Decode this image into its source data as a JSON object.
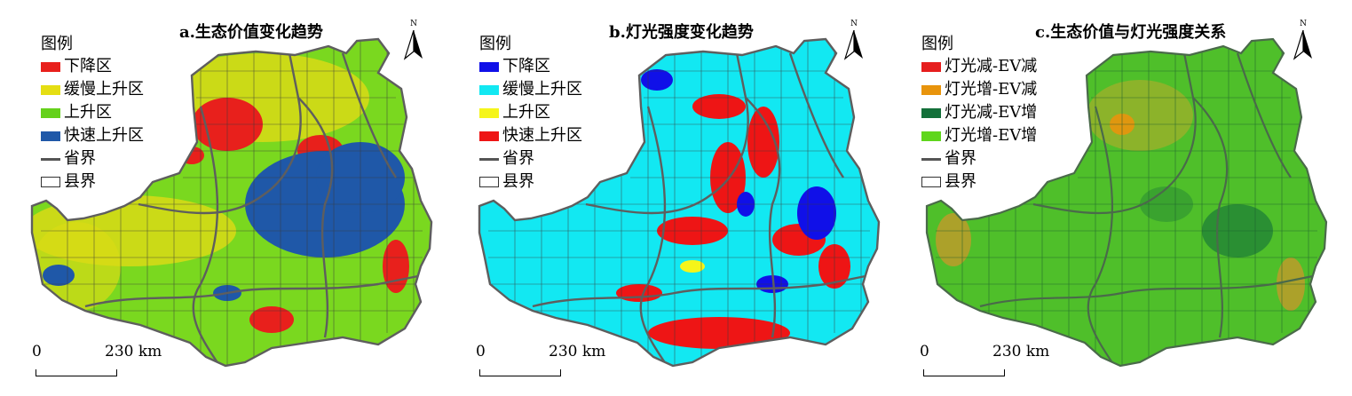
{
  "panels": {
    "a": {
      "title": "a.生态价值变化趋势",
      "north_label": "N",
      "legend": {
        "title": "图例",
        "items": [
          {
            "label": "下降区",
            "color": "#e8201c"
          },
          {
            "label": "缓慢上升区",
            "color": "#e5de13"
          },
          {
            "label": "上升区",
            "color": "#65d11b"
          },
          {
            "label": "快速上升区",
            "color": "#1f58a8"
          }
        ],
        "province_label": "省界",
        "county_label": "县界"
      },
      "scale": {
        "zero": "0",
        "distance": "230 km"
      }
    },
    "b": {
      "title": "b.灯光强度变化趋势",
      "north_label": "N",
      "legend": {
        "title": "图例",
        "items": [
          {
            "label": "下降区",
            "color": "#1010e8"
          },
          {
            "label": "缓慢上升区",
            "color": "#12e8f2"
          },
          {
            "label": "上升区",
            "color": "#f5f51a"
          },
          {
            "label": "快速上升区",
            "color": "#ee1515"
          }
        ],
        "province_label": "省界",
        "county_label": "县界"
      },
      "scale": {
        "zero": "0",
        "distance": "230 km"
      }
    },
    "c": {
      "title": "c.生态价值与灯光强度关系",
      "north_label": "N",
      "legend": {
        "title": "图例",
        "items": [
          {
            "label": "灯光减-EV减",
            "color": "#e61e1e"
          },
          {
            "label": "灯光增-EV减",
            "color": "#e8940c"
          },
          {
            "label": "灯光减-EV增",
            "color": "#13703a"
          },
          {
            "label": "灯光增-EV增",
            "color": "#5fd61c"
          }
        ],
        "province_label": "省界",
        "county_label": "县界"
      },
      "scale": {
        "zero": "0",
        "distance": "230 km"
      }
    }
  },
  "colors": {
    "province_border": "#5e5e5e",
    "county_border": "#3a3a3a"
  }
}
